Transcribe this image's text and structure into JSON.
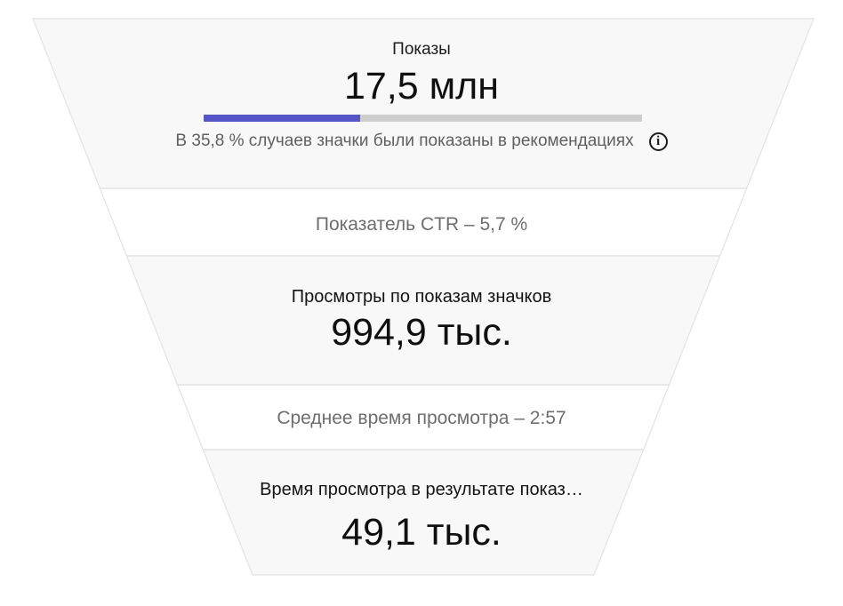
{
  "colors": {
    "accent": "#5655c8",
    "progress_track": "#cdcdcd",
    "funnel_section_fill": "#f8f8f8",
    "divider": "#dedede",
    "outline": "#e3e3e3"
  },
  "funnel": {
    "impressions": {
      "title": "Показы",
      "value": "17,5 млн",
      "progress_percent": 35.8,
      "caption": "В 35,8 % случаев значки были показаны в рекомендациях"
    },
    "ctr": {
      "label": "Показатель CTR – 5,7 %"
    },
    "views": {
      "title": "Просмотры по показам значков",
      "value": "994,9 тыс."
    },
    "avg_view_duration": {
      "label": "Среднее время просмотра – 2:57"
    },
    "watch_time": {
      "title": "Время просмотра в результате показ…",
      "value": "49,1 тыс."
    }
  },
  "icons": {
    "info_glyph": "i"
  },
  "chart_data": {
    "type": "funnel",
    "stages": [
      {
        "label": "Показы",
        "display_value": "17,5 млн",
        "value": 17500000
      },
      {
        "label": "Просмотры по показам значков",
        "display_value": "994,9 тыс.",
        "value": 994900
      },
      {
        "label": "Время просмотра в результате показ…",
        "display_value": "49,1 тыс.",
        "value": 49100
      }
    ],
    "connectors": [
      {
        "label": "Показатель CTR",
        "display_value": "5,7 %",
        "value": 5.7
      },
      {
        "label": "Среднее время просмотра",
        "display_value": "2:57"
      }
    ],
    "annotation": "В 35,8 % случаев значки были показаны в рекомендациях",
    "progress_bar_percent": 35.8,
    "grid": false,
    "legend_position": "none"
  }
}
